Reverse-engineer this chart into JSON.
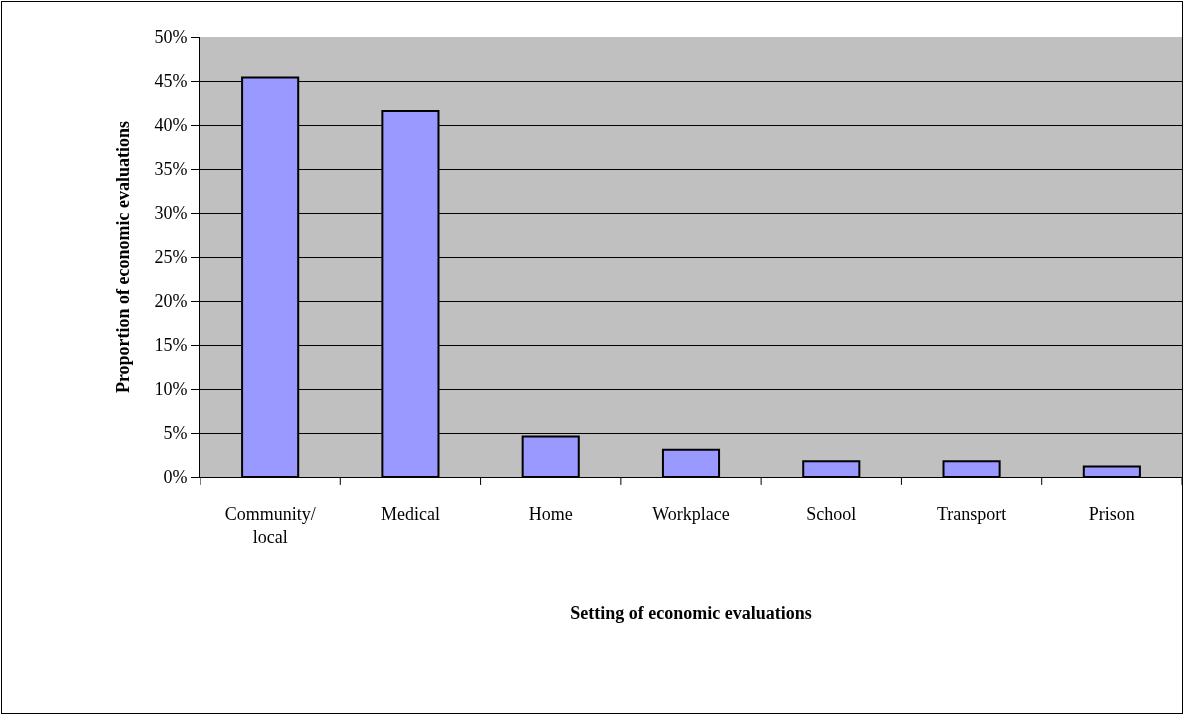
{
  "chart_data": {
    "type": "bar",
    "xlabel": "Setting of economic evaluations",
    "ylabel": "Proportion of economic evaluations",
    "categories": [
      "Community/local",
      "Medical",
      "Home",
      "Workplace",
      "School",
      "Transport",
      "Prison"
    ],
    "values": [
      45.4,
      41.6,
      4.6,
      3.1,
      1.8,
      1.8,
      1.2
    ],
    "color": "#9999ff",
    "ylim": [
      0,
      50
    ],
    "yticks": [
      {
        "value": 0,
        "label": "0%"
      },
      {
        "value": 5,
        "label": "5%"
      },
      {
        "value": 10,
        "label": "10%"
      },
      {
        "value": 15,
        "label": "15%"
      },
      {
        "value": 20,
        "label": "20%"
      },
      {
        "value": 25,
        "label": "25%"
      },
      {
        "value": 30,
        "label": "30%"
      },
      {
        "value": 35,
        "label": "35%"
      },
      {
        "value": 40,
        "label": "40%"
      },
      {
        "value": 45,
        "label": "45%"
      },
      {
        "value": 50,
        "label": "50%"
      }
    ],
    "grid": "y"
  }
}
